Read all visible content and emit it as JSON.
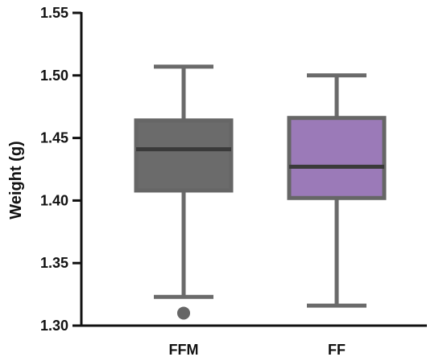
{
  "chart_data": {
    "type": "box",
    "title": "",
    "xlabel": "",
    "ylabel": "Weight (g)",
    "ylim": [
      1.3,
      1.55
    ],
    "yticks": [
      "1.30",
      "1.35",
      "1.40",
      "1.45",
      "1.50",
      "1.55"
    ],
    "grid": false,
    "series": [
      {
        "name": "FFM",
        "min": 1.323,
        "q1": 1.408,
        "median": 1.441,
        "q3": 1.464,
        "max": 1.507,
        "outliers": [
          1.31
        ],
        "color": "#6b6b6b"
      },
      {
        "name": "FF",
        "min": 1.316,
        "q1": 1.402,
        "median": 1.427,
        "q3": 1.466,
        "max": 1.5,
        "outliers": [],
        "color": "#9b7ab8"
      }
    ],
    "colors": {
      "axis": "#111111",
      "whisker": "#6a6a6a",
      "box_border": "#666666",
      "median": "#3a3a3a"
    }
  }
}
